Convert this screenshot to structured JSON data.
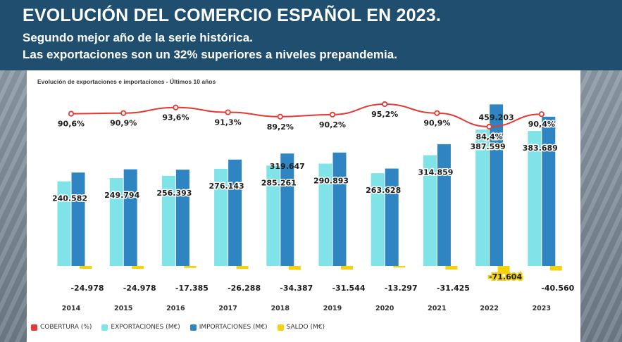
{
  "header": {
    "title": "EVOLUCIÓN DEL COMERCIO ESPAÑOL EN 2023.",
    "subtitle_1": "Segundo mejor año de la serie histórica.",
    "subtitle_2": "Las exportaciones son un 32% superiores a niveles prepandemia."
  },
  "colors": {
    "cobertura": "#e53935",
    "exportaciones": "#7fe3e8",
    "importaciones": "#2f84c2",
    "saldo": "#f5d20a"
  },
  "chart_data": {
    "type": "bar",
    "title": "Evolución de exportaciones e importaciones - Últimos 10 años",
    "categories": [
      "2014",
      "2015",
      "2016",
      "2017",
      "2018",
      "2019",
      "2020",
      "2021",
      "2022",
      "2023"
    ],
    "series": [
      {
        "name": "EXPORTACIONES (M€)",
        "values": [
          240582,
          249794,
          256393,
          276143,
          285261,
          290893,
          263628,
          314859,
          387599,
          383689
        ],
        "labels": [
          "240.582",
          "249.794",
          "256.393",
          "276.143",
          "285.261",
          "290.893",
          "263.628",
          "314.859",
          "387.599",
          "383.689"
        ]
      },
      {
        "name": "IMPORTACIONES (M€)",
        "values": [
          265560,
          274772,
          273778,
          302431,
          319647,
          322437,
          276925,
          346284,
          459203,
          424249
        ],
        "labels": [
          "",
          "",
          "",
          "",
          "319.647",
          "",
          "",
          "",
          "459.203",
          ""
        ]
      },
      {
        "name": "SALDO (M€)",
        "values": [
          -24978,
          -24978,
          -17385,
          -26288,
          -34387,
          -31544,
          -13297,
          -31425,
          -71604,
          -40560
        ],
        "labels": [
          "-24.978",
          "-24.978",
          "-17.385",
          "-26.288",
          "-34.387",
          "-31.544",
          "-13.297",
          "-31.425",
          "-71.604",
          "-40.560"
        ]
      },
      {
        "name": "COBERTURA (%)",
        "values": [
          90.6,
          90.9,
          93.6,
          91.3,
          89.2,
          90.2,
          95.2,
          90.9,
          84.4,
          90.4
        ],
        "labels": [
          "90,6%",
          "90,9%",
          "93,6%",
          "91,3%",
          "89,2%",
          "90,2%",
          "95,2%",
          "90,9%",
          "84,4%",
          "90,4%"
        ]
      }
    ],
    "legend": [
      "COBERTURA (%)",
      "EXPORTACIONES (M€)",
      "IMPORTACIONES (M€)",
      "SALDO (M€)"
    ],
    "legend_position": "bottom-left",
    "grid": false
  }
}
